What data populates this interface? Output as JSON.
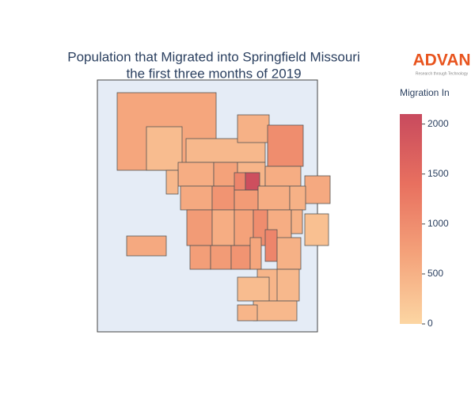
{
  "title_lines": [
    "Population that Migrated into Springfield Missouri",
    "the first three months of 2019"
  ],
  "logo": {
    "name": "ADVAN",
    "tagline": "Research through Technology"
  },
  "colorbar": {
    "title": "Migration In",
    "range": [
      0,
      2100
    ],
    "ticks": [
      0,
      500,
      1000,
      1500,
      2000
    ],
    "colorscale": [
      "#fcd6a3",
      "#f4a27a",
      "#e8705f",
      "#c84a5e"
    ]
  },
  "region_values": [
    650,
    350,
    400,
    500,
    1000,
    550,
    700,
    450,
    550,
    600,
    600,
    900,
    1100,
    2000,
    800,
    550,
    500,
    800,
    550,
    700,
    1000,
    550,
    500,
    300,
    600,
    750,
    800,
    900,
    650,
    1100,
    500,
    450,
    400,
    350,
    400,
    450,
    400
  ]
}
